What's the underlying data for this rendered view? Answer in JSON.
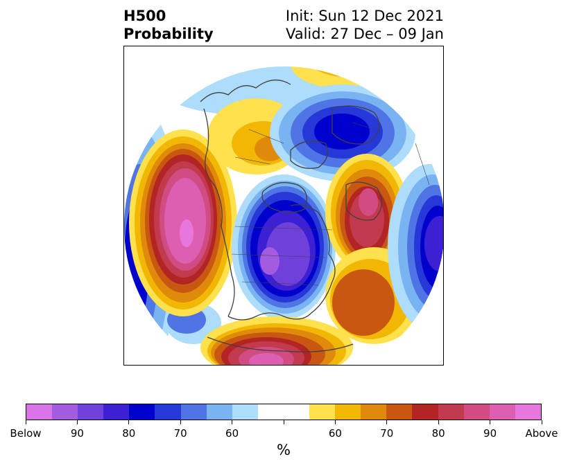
{
  "title": {
    "left_line1": "H500",
    "left_line2": "Probability",
    "right_line1": "Init: Sun 12 Dec 2021",
    "right_line2": "Valid: 27 Dec – 09 Jan"
  },
  "colorbar": {
    "colors": [
      "#d874e8",
      "#a35be0",
      "#7040da",
      "#3d1fd4",
      "#0000cc",
      "#2638d8",
      "#4f74e4",
      "#7ab3f2",
      "#aedcfb",
      "#ffffff",
      "#ffffff",
      "#ffe14d",
      "#f2b705",
      "#e08a0b",
      "#c85712",
      "#b32424",
      "#c23a4e",
      "#d14c82",
      "#dc5fb2",
      "#e877dd"
    ],
    "tick_labels": [
      "Below",
      "90",
      "80",
      "70",
      "60",
      "",
      "60",
      "70",
      "80",
      "90",
      "Above"
    ],
    "unit_label": "%"
  },
  "map": {
    "colors": {
      "below_90": "#a35be0",
      "below_85": "#7040da",
      "below_80": "#3d1fd4",
      "below_75": "#0000cc",
      "below_70": "#2638d8",
      "below_65": "#4f74e4",
      "below_60": "#7ab3f2",
      "below_55": "#aedcfb",
      "above_55": "#ffe14d",
      "above_60": "#f2b705",
      "above_65": "#e08a0b",
      "above_70": "#c85712",
      "above_75": "#b32424",
      "above_80": "#c23a4e",
      "above_85": "#d14c82",
      "above_90": "#dc5fb2",
      "above_95": "#e877dd",
      "coast": "#404040"
    }
  }
}
